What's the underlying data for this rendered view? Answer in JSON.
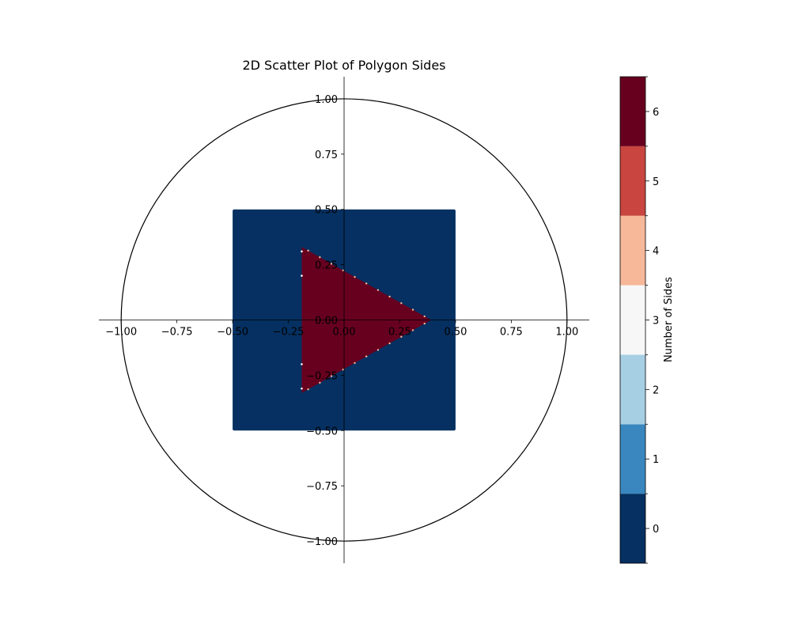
{
  "chart_data": {
    "type": "scatter",
    "title": "2D Scatter Plot of Polygon Sides",
    "xlabel": "",
    "ylabel": "",
    "xlim": [
      -1.1,
      1.1
    ],
    "ylim": [
      -1.1,
      1.1
    ],
    "grid": false,
    "spines": "centered",
    "x_ticks": [
      -1.0,
      -0.75,
      -0.5,
      -0.25,
      0.0,
      0.25,
      0.5,
      0.75,
      1.0
    ],
    "y_ticks": [
      -1.0,
      -0.75,
      -0.5,
      -0.25,
      0.0,
      0.25,
      0.5,
      0.75,
      1.0
    ],
    "x_tick_labels": [
      "−1.00",
      "−0.75",
      "−0.50",
      "−0.25",
      "0.00",
      "0.25",
      "0.50",
      "0.75",
      "1.00"
    ],
    "y_tick_labels": [
      "−1.00",
      "−0.75",
      "−0.50",
      "−0.25",
      "0.00",
      "0.25",
      "0.50",
      "0.75",
      "1.00"
    ],
    "unit_circle": {
      "center": [
        0,
        0
      ],
      "radius": 1.0,
      "color": "#000000"
    },
    "regions": [
      {
        "shape": "square",
        "x": [
          -0.5,
          0.5
        ],
        "y": [
          -0.5,
          0.5
        ],
        "value": 0,
        "color": "#053061"
      },
      {
        "shape": "triangle",
        "vertices": [
          [
            -0.19,
            0.33
          ],
          [
            0.39,
            0.0
          ],
          [
            -0.19,
            -0.33
          ]
        ],
        "value": 6,
        "color": "#67001f"
      }
    ],
    "colorbar": {
      "label": "Number of Sides",
      "ticks": [
        0,
        1,
        2,
        3,
        4,
        5,
        6
      ],
      "tick_labels": [
        "0",
        "1",
        "2",
        "3",
        "4",
        "5",
        "6"
      ],
      "range": [
        -0.5,
        6.5
      ],
      "colors": [
        "#053061",
        "#3a87bf",
        "#a7cfe4",
        "#f7f7f7",
        "#f7b799",
        "#c8463f",
        "#67001f"
      ]
    }
  }
}
